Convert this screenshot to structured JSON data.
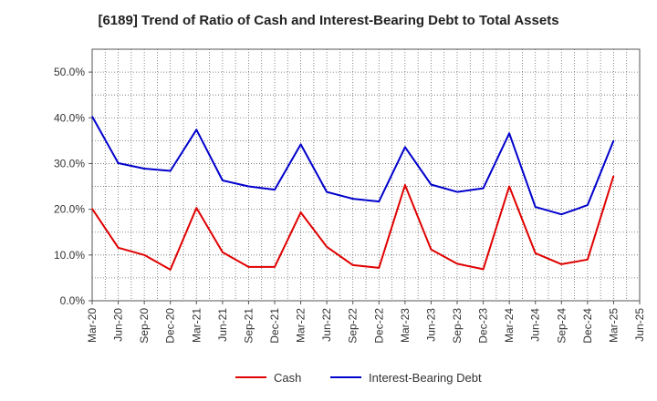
{
  "chart_data": {
    "type": "line",
    "title": "[6189]  Trend of Ratio of Cash and Interest-Bearing Debt to Total Assets",
    "xlabel": "",
    "ylabel": "",
    "x_ticks": [
      "Mar-20",
      "Jun-20",
      "Sep-20",
      "Dec-20",
      "Mar-21",
      "Jun-21",
      "Sep-21",
      "Dec-21",
      "Mar-22",
      "Jun-22",
      "Sep-22",
      "Dec-22",
      "Mar-23",
      "Jun-23",
      "Sep-23",
      "Dec-23",
      "Mar-24",
      "Jun-24",
      "Sep-24",
      "Dec-24",
      "Mar-25",
      "Jun-25"
    ],
    "y_ticks": [
      "0.0%",
      "10.0%",
      "20.0%",
      "30.0%",
      "40.0%",
      "50.0%"
    ],
    "ylim": [
      0,
      55
    ],
    "grid": true,
    "legend_position": "bottom",
    "series": [
      {
        "name": "Cash",
        "color": "#e00000",
        "values": [
          20.1,
          11.6,
          10.0,
          6.8,
          20.3,
          10.6,
          7.4,
          7.4,
          19.3,
          11.8,
          7.8,
          7.2,
          25.3,
          11.2,
          8.1,
          6.9,
          25.0,
          10.4,
          8.0,
          9.0,
          27.3
        ]
      },
      {
        "name": "Interest-Bearing Debt",
        "color": "#0000cc",
        "values": [
          40.3,
          30.1,
          28.9,
          28.4,
          37.4,
          26.3,
          25.0,
          24.3,
          34.2,
          23.8,
          22.3,
          21.7,
          33.6,
          25.4,
          23.8,
          24.6,
          36.6,
          20.5,
          18.9,
          20.9,
          35.0
        ]
      }
    ]
  }
}
